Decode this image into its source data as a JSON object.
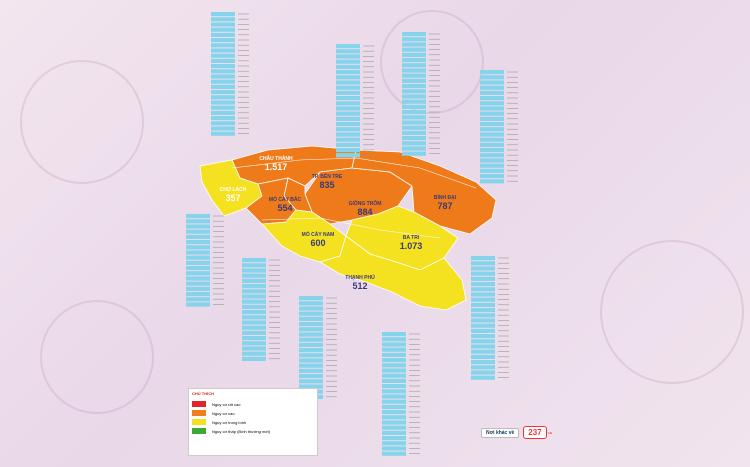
{
  "regions": {
    "chau_thanh": {
      "name": "CHÂU THÀNH",
      "value": "1.517"
    },
    "tp_ben_tre": {
      "name": "TP. BẾN TRE",
      "value": "835"
    },
    "cho_lach": {
      "name": "CHỢ LÁCH",
      "value": "357"
    },
    "mo_cay_bac": {
      "name": "MỎ CÀY BẮC",
      "value": "554"
    },
    "giong_trom": {
      "name": "GIỒNG TRÔM",
      "value": "884"
    },
    "binh_dai": {
      "name": "BÌNH ĐẠI",
      "value": "787"
    },
    "mo_cay_nam": {
      "name": "MỎ CÀY NAM",
      "value": "600"
    },
    "ba_tri": {
      "name": "BA TRI",
      "value": "1.073"
    },
    "thanh_phu": {
      "name": "THẠNH PHÚ",
      "value": "512"
    }
  },
  "legend": {
    "title": "CHÚ THÍCH",
    "items": [
      {
        "label": "Nguy cơ rất cao",
        "color": "#e0262b"
      },
      {
        "label": "Nguy cơ cao",
        "color": "#f07d1e"
      },
      {
        "label": "Nguy cơ trung bình",
        "color": "#f5e11e"
      },
      {
        "label": "Nguy cơ thấp (Bình thường mới)",
        "color": "#3aa935"
      }
    ]
  },
  "footer": {
    "label": "Nơi khác về",
    "value": "237",
    "unit": "ca"
  }
}
